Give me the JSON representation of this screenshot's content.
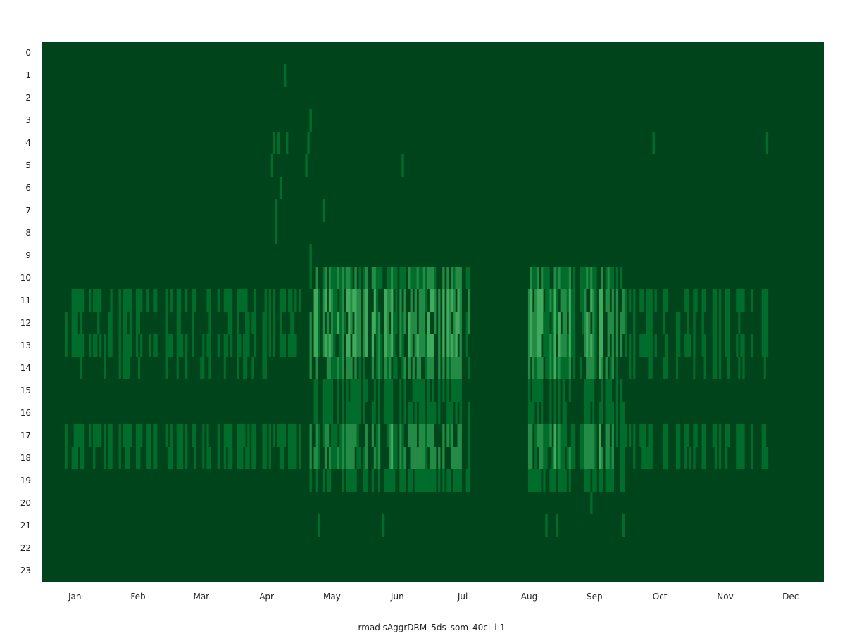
{
  "chart_data": {
    "type": "heatmap",
    "title": "",
    "xlabel": "rmad sAggrDRM_5ds_som_40cl_i-1",
    "ylabel": "",
    "y_categories": [
      "0",
      "1",
      "2",
      "3",
      "4",
      "5",
      "6",
      "7",
      "8",
      "9",
      "10",
      "11",
      "12",
      "13",
      "14",
      "15",
      "16",
      "17",
      "18",
      "19",
      "20",
      "21",
      "22",
      "23"
    ],
    "x_tick_labels": [
      "Jan",
      "Feb",
      "Mar",
      "Apr",
      "May",
      "Jun",
      "Jul",
      "Aug",
      "Sep",
      "Oct",
      "Nov",
      "Dec"
    ],
    "x_range_days": [
      1,
      365
    ],
    "value_range": [
      0,
      1
    ],
    "background_color": "#00441b",
    "colormap": [
      "#00441b",
      "#006d2c",
      "#238b45",
      "#41ab5d",
      "#74c476"
    ],
    "grid": false,
    "active_hour_profiles": {
      "peak_season": {
        "10": 0.35,
        "11": 0.55,
        "12": 0.55,
        "13": 0.55,
        "14": 0.45,
        "15": 0.18,
        "16": 0.18,
        "17": 0.45,
        "18": 0.45,
        "19": 0.2,
        "20": 0.08
      },
      "low_season": {
        "11": 0.22,
        "12": 0.15,
        "13": 0.22,
        "14": 0.12,
        "15": 0.05,
        "16": 0.05,
        "17": 0.22,
        "18": 0.22,
        "19": 0.04
      }
    },
    "periods": [
      {
        "day_start": 12,
        "day_end": 110,
        "profile": "low_season",
        "fill": 0.55
      },
      {
        "day_start": 111,
        "day_end": 125,
        "profile": "low_season",
        "fill": 0.7
      },
      {
        "day_start": 126,
        "day_end": 200,
        "profile": "peak_season",
        "fill": 0.85
      },
      {
        "day_start": 201,
        "day_end": 227,
        "profile": "none",
        "fill": 0
      },
      {
        "day_start": 228,
        "day_end": 272,
        "profile": "peak_season",
        "fill": 0.85
      },
      {
        "day_start": 273,
        "day_end": 340,
        "profile": "low_season",
        "fill": 0.55
      }
    ],
    "sparse_cells": [
      {
        "day": 114,
        "hour": 1
      },
      {
        "day": 126,
        "hour": 3
      },
      {
        "day": 109,
        "hour": 4
      },
      {
        "day": 111,
        "hour": 4
      },
      {
        "day": 115,
        "hour": 4
      },
      {
        "day": 125,
        "hour": 4
      },
      {
        "day": 286,
        "hour": 4
      },
      {
        "day": 339,
        "hour": 4
      },
      {
        "day": 108,
        "hour": 5
      },
      {
        "day": 124,
        "hour": 5
      },
      {
        "day": 169,
        "hour": 5
      },
      {
        "day": 112,
        "hour": 6
      },
      {
        "day": 110,
        "hour": 7
      },
      {
        "day": 132,
        "hour": 7
      },
      {
        "day": 110,
        "hour": 8
      },
      {
        "day": 126,
        "hour": 9
      },
      {
        "day": 130,
        "hour": 21
      },
      {
        "day": 160,
        "hour": 21
      },
      {
        "day": 236,
        "hour": 21
      },
      {
        "day": 241,
        "hour": 21
      },
      {
        "day": 257,
        "hour": 20
      },
      {
        "day": 272,
        "hour": 21
      }
    ]
  }
}
